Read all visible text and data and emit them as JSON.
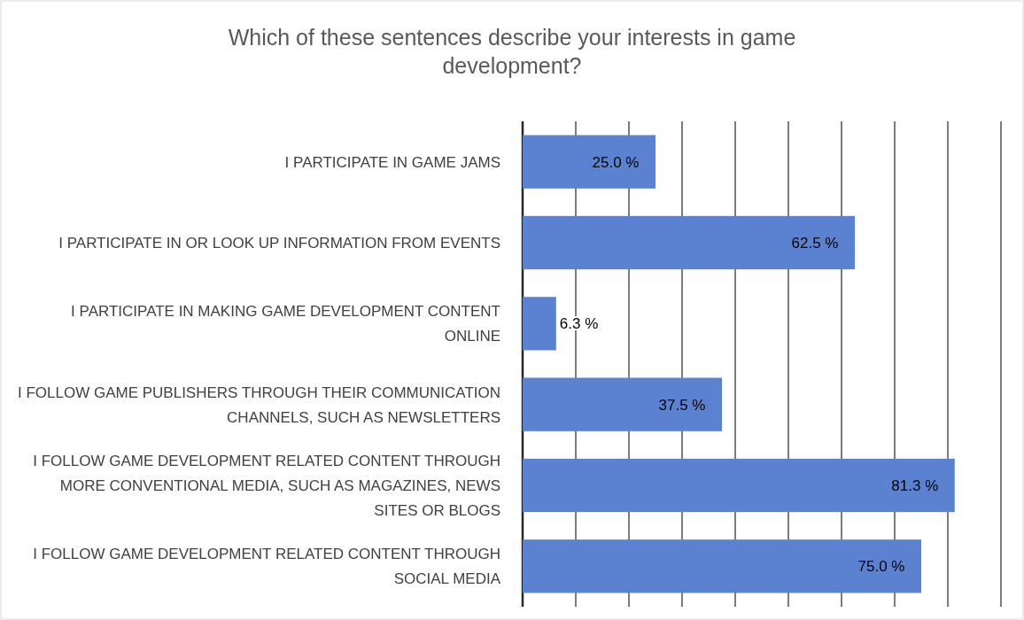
{
  "chart_data": {
    "type": "bar",
    "orientation": "horizontal",
    "title": "Which of these sentences describe your interests in game development?",
    "categories": [
      "I PARTICIPATE IN GAME JAMS",
      "I PARTICIPATE IN OR LOOK UP INFORMATION FROM EVENTS",
      "I PARTICIPATE IN MAKING GAME DEVELOPMENT CONTENT ONLINE",
      "I FOLLOW GAME PUBLISHERS THROUGH THEIR COMMUNICATION CHANNELS, SUCH AS NEWSLETTERS",
      "I FOLLOW GAME DEVELOPMENT RELATED CONTENT THROUGH MORE CONVENTIONAL MEDIA, SUCH AS MAGAZINES, NEWS SITES OR BLOGS",
      "I FOLLOW GAME DEVELOPMENT RELATED CONTENT THROUGH SOCIAL MEDIA"
    ],
    "values": [
      25.0,
      62.5,
      6.3,
      37.5,
      81.3,
      75.0
    ],
    "value_labels": [
      "25.0 %",
      "62.5 %",
      "6.3 %",
      "37.5 %",
      "81.3 %",
      "75.0 %"
    ],
    "color": "#5b82d0",
    "xlim": [
      0,
      90
    ],
    "xticks": [
      {
        "value": 0,
        "label": null
      },
      {
        "value": 10,
        "label": null
      },
      {
        "value": 20,
        "label": null
      },
      {
        "value": 30,
        "label": null
      },
      {
        "value": 40,
        "label": null
      },
      {
        "value": 50,
        "label": null
      },
      {
        "value": 60,
        "label": null
      },
      {
        "value": 70,
        "label": null
      },
      {
        "value": 80,
        "label": null
      },
      {
        "value": 90,
        "label": null
      }
    ],
    "grid": "x",
    "tick_labels": "y"
  }
}
